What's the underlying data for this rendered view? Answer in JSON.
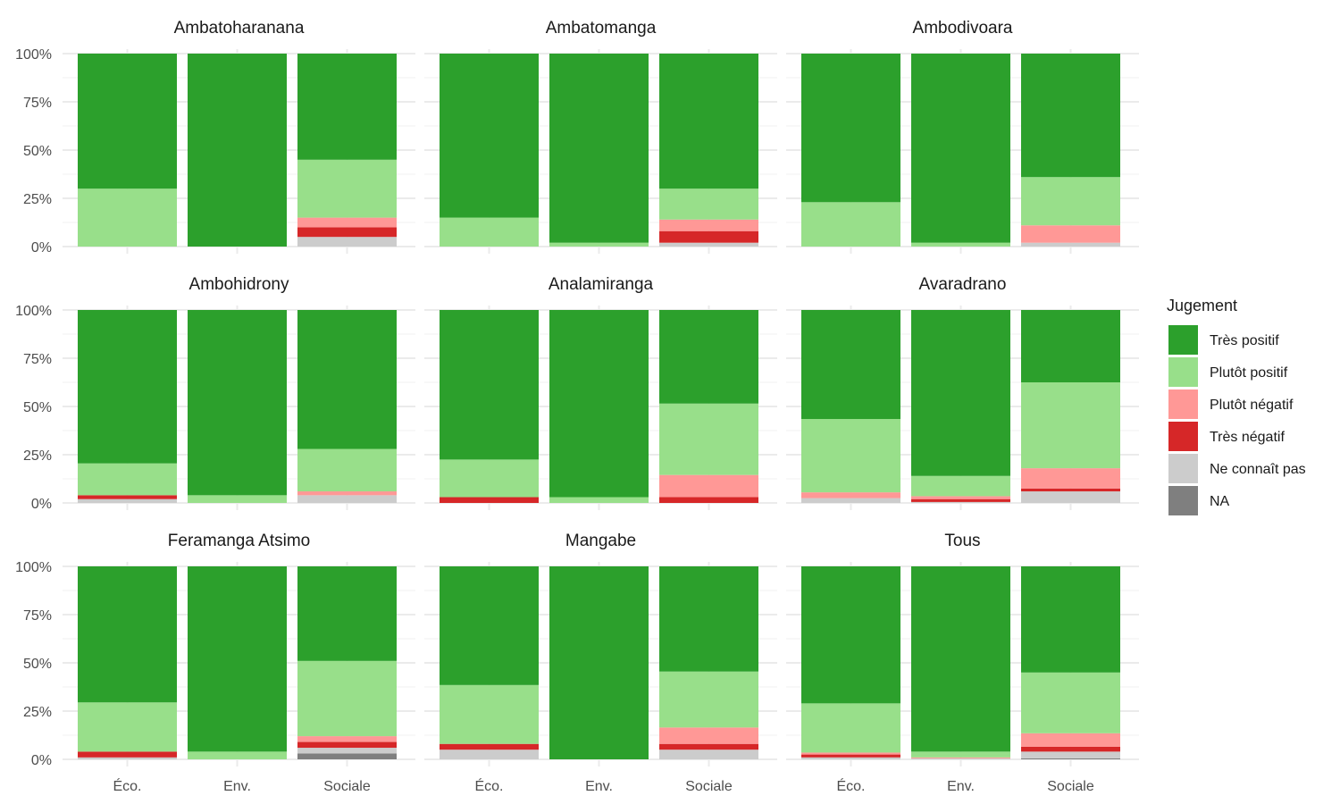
{
  "chart_data": {
    "type": "bar",
    "stacked": true,
    "facet_columns": 3,
    "categories": [
      "Éco.",
      "Env.",
      "Sociale"
    ],
    "y_ticks": [
      "0%",
      "25%",
      "50%",
      "75%",
      "100%"
    ],
    "ylim": [
      0,
      100
    ],
    "legend": {
      "title": "Jugement",
      "position": "right",
      "entries": [
        {
          "key": "tres_positif",
          "label": "Très positif",
          "color": "#2ca02c"
        },
        {
          "key": "plutot_positif",
          "label": "Plutôt positif",
          "color": "#98df8a"
        },
        {
          "key": "plutot_negatif",
          "label": "Plutôt négatif",
          "color": "#ff9896"
        },
        {
          "key": "tres_negatif",
          "label": "Très négatif",
          "color": "#d62728"
        },
        {
          "key": "ne_connait_pas",
          "label": "Ne connaît pas",
          "color": "#cccccc"
        },
        {
          "key": "na",
          "label": "NA",
          "color": "#7f7f7f"
        }
      ]
    },
    "stack_order_bottom_to_top": [
      "na",
      "ne_connait_pas",
      "tres_negatif",
      "plutot_negatif",
      "plutot_positif",
      "tres_positif"
    ],
    "facets": [
      {
        "title": "Ambatoharanana",
        "bars": [
          {
            "na": 0,
            "ne_connait_pas": 0,
            "tres_negatif": 0,
            "plutot_negatif": 0,
            "plutot_positif": 30,
            "tres_positif": 70
          },
          {
            "na": 0,
            "ne_connait_pas": 0,
            "tres_negatif": 0,
            "plutot_negatif": 0,
            "plutot_positif": 0,
            "tres_positif": 100
          },
          {
            "na": 0,
            "ne_connait_pas": 5,
            "tres_negatif": 5,
            "plutot_negatif": 5,
            "plutot_positif": 30,
            "tres_positif": 55
          }
        ]
      },
      {
        "title": "Ambatomanga",
        "bars": [
          {
            "na": 0,
            "ne_connait_pas": 0,
            "tres_negatif": 0,
            "plutot_negatif": 0,
            "plutot_positif": 15,
            "tres_positif": 85
          },
          {
            "na": 0,
            "ne_connait_pas": 0,
            "tres_negatif": 0,
            "plutot_negatif": 0,
            "plutot_positif": 2,
            "tres_positif": 98
          },
          {
            "na": 0,
            "ne_connait_pas": 2,
            "tres_negatif": 6,
            "plutot_negatif": 6,
            "plutot_positif": 16,
            "tres_positif": 70
          }
        ]
      },
      {
        "title": "Ambodivoara",
        "bars": [
          {
            "na": 0,
            "ne_connait_pas": 0,
            "tres_negatif": 0,
            "plutot_negatif": 0,
            "plutot_positif": 23,
            "tres_positif": 77
          },
          {
            "na": 0,
            "ne_connait_pas": 0,
            "tres_negatif": 0,
            "plutot_negatif": 0,
            "plutot_positif": 2,
            "tres_positif": 98
          },
          {
            "na": 0,
            "ne_connait_pas": 2,
            "tres_negatif": 0,
            "plutot_negatif": 9,
            "plutot_positif": 25,
            "tres_positif": 64
          }
        ]
      },
      {
        "title": "Ambohidrony",
        "bars": [
          {
            "na": 0,
            "ne_connait_pas": 2,
            "tres_negatif": 2,
            "plutot_negatif": 0,
            "plutot_positif": 16.5,
            "tres_positif": 79.5
          },
          {
            "na": 0,
            "ne_connait_pas": 0,
            "tres_negatif": 0,
            "plutot_negatif": 0,
            "plutot_positif": 4,
            "tres_positif": 96
          },
          {
            "na": 0,
            "ne_connait_pas": 4,
            "tres_negatif": 0,
            "plutot_negatif": 2,
            "plutot_positif": 22,
            "tres_positif": 72
          }
        ]
      },
      {
        "title": "Analamiranga",
        "bars": [
          {
            "na": 0,
            "ne_connait_pas": 0,
            "tres_negatif": 3,
            "plutot_negatif": 0,
            "plutot_positif": 19.5,
            "tres_positif": 77.5
          },
          {
            "na": 0,
            "ne_connait_pas": 0,
            "tres_negatif": 0,
            "plutot_negatif": 0,
            "plutot_positif": 3,
            "tres_positif": 97
          },
          {
            "na": 0,
            "ne_connait_pas": 0,
            "tres_negatif": 3,
            "plutot_negatif": 11.5,
            "plutot_positif": 37,
            "tres_positif": 48.5
          }
        ]
      },
      {
        "title": "Avaradrano",
        "bars": [
          {
            "na": 0,
            "ne_connait_pas": 2.5,
            "tres_negatif": 0,
            "plutot_negatif": 3,
            "plutot_positif": 38,
            "tres_positif": 56.5
          },
          {
            "na": 0,
            "ne_connait_pas": 0.5,
            "tres_negatif": 1.5,
            "plutot_negatif": 1.5,
            "plutot_positif": 10.5,
            "tres_positif": 86
          },
          {
            "na": 0,
            "ne_connait_pas": 6,
            "tres_negatif": 1.5,
            "plutot_negatif": 10.5,
            "plutot_positif": 44.5,
            "tres_positif": 37.5
          }
        ]
      },
      {
        "title": "Feramanga Atsimo",
        "bars": [
          {
            "na": 0,
            "ne_connait_pas": 1,
            "tres_negatif": 3,
            "plutot_negatif": 0,
            "plutot_positif": 25.5,
            "tres_positif": 70.5
          },
          {
            "na": 0,
            "ne_connait_pas": 0,
            "tres_negatif": 0,
            "plutot_negatif": 0,
            "plutot_positif": 4,
            "tres_positif": 96
          },
          {
            "na": 3,
            "ne_connait_pas": 3,
            "tres_negatif": 3,
            "plutot_negatif": 3,
            "plutot_positif": 39,
            "tres_positif": 49
          }
        ]
      },
      {
        "title": "Mangabe",
        "bars": [
          {
            "na": 0,
            "ne_connait_pas": 5,
            "tres_negatif": 3,
            "plutot_negatif": 0,
            "plutot_positif": 30.5,
            "tres_positif": 61.5
          },
          {
            "na": 0,
            "ne_connait_pas": 0,
            "tres_negatif": 0,
            "plutot_negatif": 0,
            "plutot_positif": 0,
            "tres_positif": 100
          },
          {
            "na": 0,
            "ne_connait_pas": 5,
            "tres_negatif": 3,
            "plutot_negatif": 8.5,
            "plutot_positif": 29,
            "tres_positif": 54.5
          }
        ]
      },
      {
        "title": "Tous",
        "bars": [
          {
            "na": 0,
            "ne_connait_pas": 1,
            "tres_negatif": 1.5,
            "plutot_negatif": 1,
            "plutot_positif": 25.5,
            "tres_positif": 71
          },
          {
            "na": 0,
            "ne_connait_pas": 0.5,
            "tres_negatif": 0,
            "plutot_negatif": 0.5,
            "plutot_positif": 3,
            "tres_positif": 96
          },
          {
            "na": 0.5,
            "ne_connait_pas": 3.5,
            "tres_negatif": 2.5,
            "plutot_negatif": 7,
            "plutot_positif": 31.5,
            "tres_positif": 55
          }
        ]
      }
    ]
  }
}
